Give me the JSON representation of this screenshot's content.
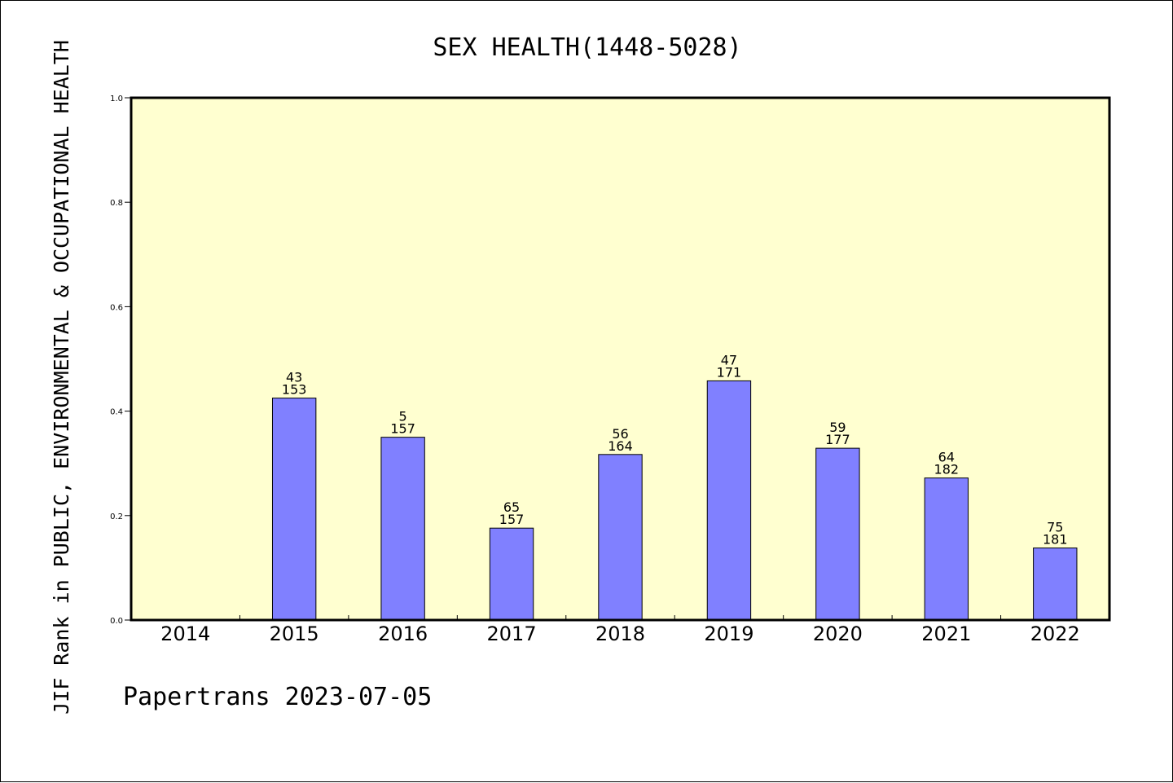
{
  "chart_data": {
    "type": "bar",
    "title": "SEX HEALTH(1448-5028)",
    "ylabel": "JIF Rank in PUBLIC, ENVIRONMENTAL & OCCUPATIONAL HEALTH",
    "xlabel": "",
    "categories": [
      "2014",
      "2015",
      "2016",
      "2017",
      "2018",
      "2019",
      "2020",
      "2021",
      "2022"
    ],
    "values": [
      null,
      0.425,
      0.35,
      0.176,
      0.317,
      0.458,
      0.329,
      0.272,
      0.138
    ],
    "labels": [
      null,
      {
        "rank": "43",
        "total": "153"
      },
      {
        "rank": "5",
        "total": "157"
      },
      {
        "rank": "65",
        "total": "157"
      },
      {
        "rank": "56",
        "total": "164"
      },
      {
        "rank": "47",
        "total": "171"
      },
      {
        "rank": "59",
        "total": "177"
      },
      {
        "rank": "64",
        "total": "182"
      },
      {
        "rank": "75",
        "total": "181"
      }
    ],
    "ylim": [
      0,
      1.0
    ],
    "yticks": [
      "0.0",
      "0.2",
      "0.4",
      "0.6",
      "0.8",
      "1.0"
    ],
    "grid": false,
    "legend": "none",
    "colors": {
      "plot_background": "#ffffd0",
      "bar_fill": "#8080ff",
      "bar_stroke": "#000000",
      "axis": "#000000"
    }
  },
  "footer": {
    "text": "Papertrans 2023-07-05"
  }
}
